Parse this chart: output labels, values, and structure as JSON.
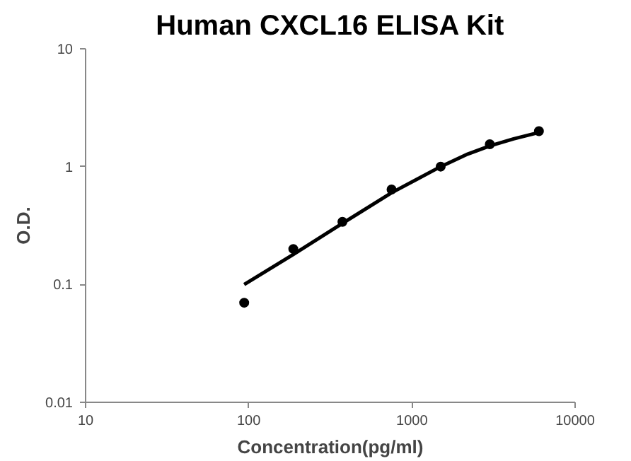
{
  "chart_data": {
    "type": "scatter",
    "title": "Human CXCL16 ELISA Kit",
    "xlabel": "Concentration(pg/ml)",
    "ylabel": "O.D.",
    "log": "xy",
    "grid": false,
    "xlim": [
      10,
      10000
    ],
    "xticks": [
      10,
      100,
      1000,
      10000
    ],
    "ylim": [
      0.01,
      10
    ],
    "yticks": [
      0.01,
      0.1,
      1,
      10
    ],
    "x": [
      93.75,
      187.5,
      375,
      750,
      1500,
      3000,
      6000
    ],
    "series": [
      {
        "color": "#000000",
        "marker": "circle",
        "values": [
          0.07,
          0.2,
          0.34,
          0.64,
          1.0,
          1.55,
          2.0
        ]
      },
      {
        "type": "line",
        "color": "#000000",
        "x": [
          93.75,
          187.5,
          375,
          750,
          1500,
          2200,
          3000,
          4200,
          6000
        ],
        "values": [
          0.1,
          0.18,
          0.33,
          0.6,
          1.0,
          1.28,
          1.5,
          1.72,
          1.95
        ]
      }
    ]
  }
}
